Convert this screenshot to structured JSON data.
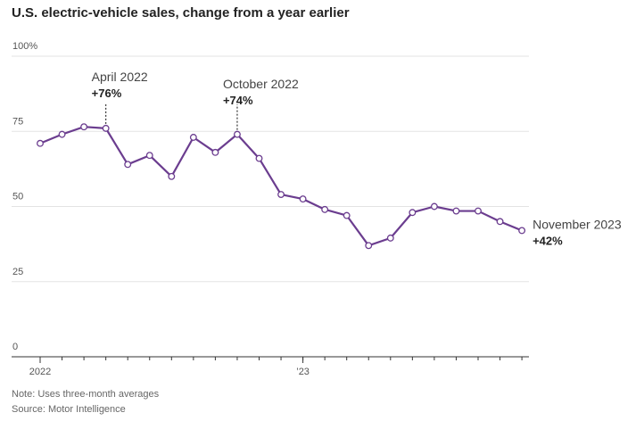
{
  "chart_data": {
    "type": "line",
    "title": "U.S. electric-vehicle sales, change from a year earlier",
    "ylim": [
      0,
      100
    ],
    "y_ticks": [
      {
        "value": 100,
        "label": "100%"
      },
      {
        "value": 75,
        "label": "75"
      },
      {
        "value": 50,
        "label": "50"
      },
      {
        "value": 25,
        "label": "25"
      },
      {
        "value": 0,
        "label": "0"
      }
    ],
    "x_ticks": [
      {
        "index": 0,
        "label": "2022"
      },
      {
        "index": 12,
        "label": "’23"
      }
    ],
    "grid": true,
    "x": [
      "Jan 2022",
      "Feb 2022",
      "Mar 2022",
      "Apr 2022",
      "May 2022",
      "Jun 2022",
      "Jul 2022",
      "Aug 2022",
      "Sep 2022",
      "Oct 2022",
      "Nov 2022",
      "Dec 2022",
      "Jan 2023",
      "Feb 2023",
      "Mar 2023",
      "Apr 2023",
      "May 2023",
      "Jun 2023",
      "Jul 2023",
      "Aug 2023",
      "Sep 2023",
      "Oct 2023",
      "Nov 2023"
    ],
    "values": [
      71,
      74,
      76.5,
      76,
      64,
      67,
      60,
      73,
      68,
      74,
      66,
      54,
      52.5,
      49,
      47,
      37,
      39.5,
      48,
      50,
      48.5,
      48.5,
      45,
      42
    ],
    "line_color": "#6b3d8f",
    "annotations": [
      {
        "index": 3,
        "label": "April 2022",
        "value": "+76%"
      },
      {
        "index": 9,
        "label": "October 2022",
        "value": "+74%"
      },
      {
        "index": 22,
        "label": "November 2023",
        "value": "+42%"
      }
    ]
  },
  "footnote": {
    "note": "Note: Uses three-month averages",
    "source": "Source: Motor Intelligence"
  }
}
